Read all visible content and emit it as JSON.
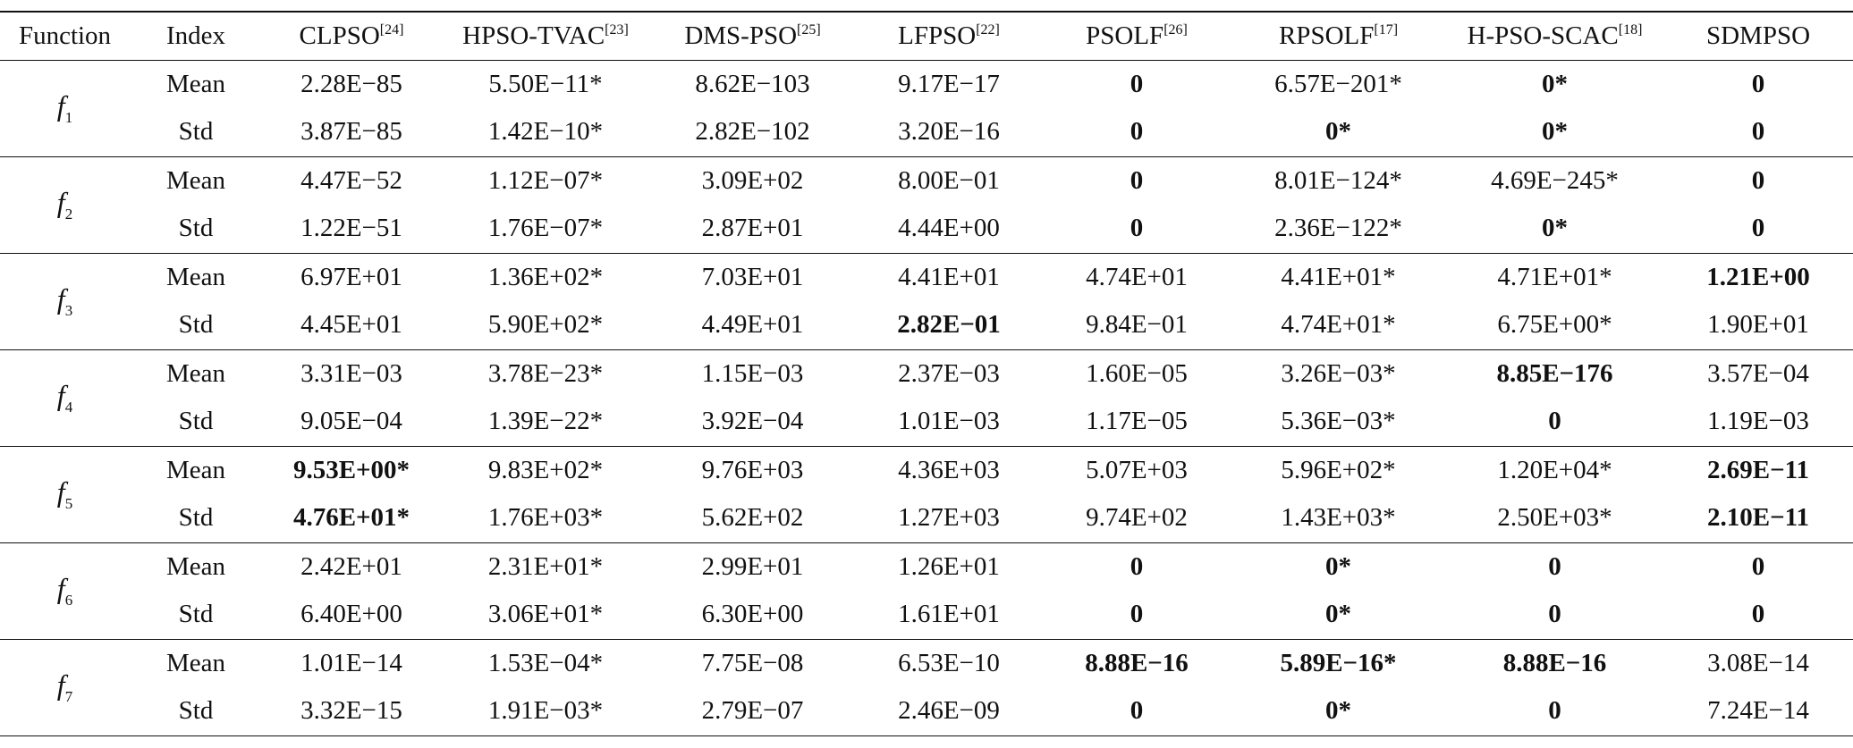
{
  "table": {
    "columns": [
      {
        "text": "Function"
      },
      {
        "text": "Index"
      },
      {
        "text": "CLPSO",
        "ref": "[24]"
      },
      {
        "text": "HPSO-TVAC",
        "ref": "[23]"
      },
      {
        "text": "DMS-PSO",
        "ref": "[25]"
      },
      {
        "text": "LFPSO",
        "ref": "[22]"
      },
      {
        "text": "PSOLF",
        "ref": "[26]"
      },
      {
        "text": "RPSOLF",
        "ref": "[17]"
      },
      {
        "text": "H-PSO-SCAC",
        "ref": "[18]"
      },
      {
        "text": "SDMPSO"
      }
    ],
    "groups": [
      {
        "function": "f",
        "sub": "1",
        "rows": [
          {
            "index": "Mean",
            "values": [
              "2.28E−85",
              "5.50E−11*",
              "8.62E−103",
              "9.17E−17",
              "0",
              "6.57E−201*",
              "0*",
              "0"
            ],
            "bold": [
              4,
              6,
              7
            ]
          },
          {
            "index": "Std",
            "values": [
              "3.87E−85",
              "1.42E−10*",
              "2.82E−102",
              "3.20E−16",
              "0",
              "0*",
              "0*",
              "0"
            ],
            "bold": [
              4,
              5,
              6,
              7
            ]
          }
        ]
      },
      {
        "function": "f",
        "sub": "2",
        "rows": [
          {
            "index": "Mean",
            "values": [
              "4.47E−52",
              "1.12E−07*",
              "3.09E+02",
              "8.00E−01",
              "0",
              "8.01E−124*",
              "4.69E−245*",
              "0"
            ],
            "bold": [
              4,
              7
            ]
          },
          {
            "index": "Std",
            "values": [
              "1.22E−51",
              "1.76E−07*",
              "2.87E+01",
              "4.44E+00",
              "0",
              "2.36E−122*",
              "0*",
              "0"
            ],
            "bold": [
              4,
              6,
              7
            ]
          }
        ]
      },
      {
        "function": "f",
        "sub": "3",
        "rows": [
          {
            "index": "Mean",
            "values": [
              "6.97E+01",
              "1.36E+02*",
              "7.03E+01",
              "4.41E+01",
              "4.74E+01",
              "4.41E+01*",
              "4.71E+01*",
              "1.21E+00"
            ],
            "bold": [
              7
            ]
          },
          {
            "index": "Std",
            "values": [
              "4.45E+01",
              "5.90E+02*",
              "4.49E+01",
              "2.82E−01",
              "9.84E−01",
              "4.74E+01*",
              "6.75E+00*",
              "1.90E+01"
            ],
            "bold": [
              3
            ]
          }
        ]
      },
      {
        "function": "f",
        "sub": "4",
        "rows": [
          {
            "index": "Mean",
            "values": [
              "3.31E−03",
              "3.78E−23*",
              "1.15E−03",
              "2.37E−03",
              "1.60E−05",
              "3.26E−03*",
              "8.85E−176",
              "3.57E−04"
            ],
            "bold": [
              6
            ]
          },
          {
            "index": "Std",
            "values": [
              "9.05E−04",
              "1.39E−22*",
              "3.92E−04",
              "1.01E−03",
              "1.17E−05",
              "5.36E−03*",
              "0",
              "1.19E−03"
            ],
            "bold": [
              6
            ]
          }
        ]
      },
      {
        "function": "f",
        "sub": "5",
        "rows": [
          {
            "index": "Mean",
            "values": [
              "9.53E+00*",
              "9.83E+02*",
              "9.76E+03",
              "4.36E+03",
              "5.07E+03",
              "5.96E+02*",
              "1.20E+04*",
              "2.69E−11"
            ],
            "bold": [
              0,
              7
            ]
          },
          {
            "index": "Std",
            "values": [
              "4.76E+01*",
              "1.76E+03*",
              "5.62E+02",
              "1.27E+03",
              "9.74E+02",
              "1.43E+03*",
              "2.50E+03*",
              "2.10E−11"
            ],
            "bold": [
              0,
              7
            ]
          }
        ]
      },
      {
        "function": "f",
        "sub": "6",
        "rows": [
          {
            "index": "Mean",
            "values": [
              "2.42E+01",
              "2.31E+01*",
              "2.99E+01",
              "1.26E+01",
              "0",
              "0*",
              "0",
              "0"
            ],
            "bold": [
              4,
              5,
              6,
              7
            ]
          },
          {
            "index": "Std",
            "values": [
              "6.40E+00",
              "3.06E+01*",
              "6.30E+00",
              "1.61E+01",
              "0",
              "0*",
              "0",
              "0"
            ],
            "bold": [
              4,
              5,
              6,
              7
            ]
          }
        ]
      },
      {
        "function": "f",
        "sub": "7",
        "rows": [
          {
            "index": "Mean",
            "values": [
              "1.01E−14",
              "1.53E−04*",
              "7.75E−08",
              "6.53E−10",
              "8.88E−16",
              "5.89E−16*",
              "8.88E−16",
              "3.08E−14"
            ],
            "bold": [
              4,
              5,
              6
            ]
          },
          {
            "index": "Std",
            "values": [
              "3.32E−15",
              "1.91E−03*",
              "2.79E−07",
              "2.46E−09",
              "0",
              "0*",
              "0",
              "7.24E−14"
            ],
            "bold": [
              4,
              5,
              6
            ]
          }
        ]
      }
    ]
  }
}
